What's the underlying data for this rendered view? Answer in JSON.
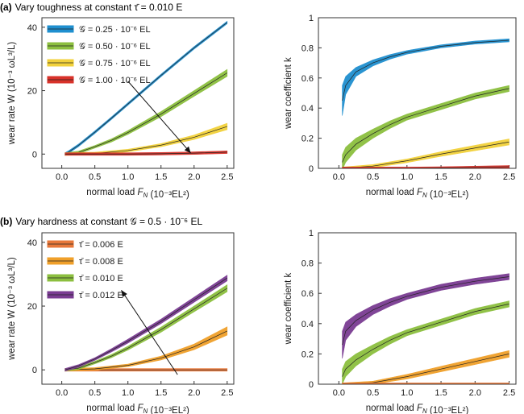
{
  "panels": [
    {
      "tag": "(a)",
      "title": "Vary toughness at constant τ̄ = 0.010 E"
    },
    {
      "tag": "(b)",
      "title": "Vary hardness at constant 𝒢 = 0.5 · 10⁻⁶ EL"
    }
  ],
  "colors": {
    "blue": "#1f8fcf",
    "green": "#8cbf3f",
    "yellow": "#f2d13a",
    "red": "#d8322a",
    "orange": "#e8783a",
    "amber": "#f0a02a",
    "purple": "#7a3c92",
    "centerline": "#222222",
    "frame": "#333333"
  },
  "chart_data": [
    {
      "id": "a-left",
      "type": "line",
      "xlabel": "normal load F_N (10⁻³EL²)",
      "ylabel": "wear rate W (10⁻³ ωL³/L)",
      "xlim": [
        -0.3,
        2.6
      ],
      "ylim": [
        -4.5,
        43
      ],
      "xticks": [
        "0.0",
        "0.5",
        "1.0",
        "1.5",
        "2.0",
        "2.5"
      ],
      "yticks": [
        "0",
        "20",
        "40"
      ],
      "legend": "top-left",
      "series": [
        {
          "name": "𝒢 = 0.25 · 10⁻⁶ EL",
          "color": "blue",
          "x": [
            0.05,
            0.1,
            0.25,
            0.5,
            0.75,
            1.0,
            1.5,
            2.0,
            2.5
          ],
          "y": [
            0,
            0.6,
            2.7,
            6.9,
            11.3,
            15.8,
            24.8,
            33.5,
            41.5
          ],
          "band": [
            0,
            0,
            0.1,
            0.15,
            0.2,
            0.2,
            0.25,
            0.3,
            0.3
          ]
        },
        {
          "name": "𝒢 = 0.50 · 10⁻⁶ EL",
          "color": "green",
          "x": [
            0.05,
            0.25,
            0.5,
            0.75,
            1.0,
            1.5,
            2.0,
            2.5
          ],
          "y": [
            0,
            0.5,
            2.3,
            4.3,
            6.8,
            12.6,
            19.1,
            25.6
          ],
          "band": [
            0,
            0.2,
            0.4,
            0.5,
            0.6,
            0.8,
            0.9,
            1.1
          ]
        },
        {
          "name": "𝒢 = 0.75 · 10⁻⁶ EL",
          "color": "yellow",
          "x": [
            0.05,
            0.5,
            1.0,
            1.5,
            2.0,
            2.5
          ],
          "y": [
            0,
            0.2,
            1.1,
            2.8,
            5.3,
            8.7
          ],
          "band": [
            0,
            0.1,
            0.3,
            0.5,
            0.7,
            1.0
          ]
        },
        {
          "name": "𝒢 = 1.00 · 10⁻⁶ EL",
          "color": "red",
          "x": [
            0.05,
            1.0,
            1.5,
            2.0,
            2.5
          ],
          "y": [
            0,
            0,
            0.1,
            0.3,
            0.6
          ],
          "band": [
            0,
            0.05,
            0.1,
            0.2,
            0.3
          ]
        }
      ],
      "arrow": {
        "from": [
          1.0,
          23
        ],
        "to": [
          1.95,
          0.3
        ]
      }
    },
    {
      "id": "a-right",
      "type": "line",
      "xlabel": "normal load F_N (10⁻³EL²)",
      "ylabel": "wear coefficient k",
      "xlim": [
        -0.3,
        2.6
      ],
      "ylim": [
        0,
        1
      ],
      "xticks": [
        "0.0",
        "0.5",
        "1.0",
        "1.5",
        "2.0",
        "2.5"
      ],
      "yticks": [
        "0",
        "0.2",
        "0.4",
        "0.6",
        "0.8",
        "1"
      ],
      "series": [
        {
          "color": "blue",
          "x": [
            0.05,
            0.1,
            0.25,
            0.5,
            0.75,
            1.0,
            1.5,
            2.0,
            2.5
          ],
          "y": [
            0.45,
            0.55,
            0.64,
            0.7,
            0.74,
            0.77,
            0.81,
            0.835,
            0.85
          ],
          "band": [
            0.1,
            0.06,
            0.03,
            0.02,
            0.015,
            0.012,
            0.01,
            0.01,
            0.01
          ]
        },
        {
          "color": "green",
          "x": [
            0.05,
            0.1,
            0.25,
            0.5,
            0.75,
            1.0,
            1.5,
            2.0,
            2.5
          ],
          "y": [
            0.04,
            0.09,
            0.16,
            0.23,
            0.29,
            0.34,
            0.41,
            0.48,
            0.53
          ],
          "band": [
            0.05,
            0.05,
            0.04,
            0.03,
            0.025,
            0.02,
            0.02,
            0.02,
            0.02
          ]
        },
        {
          "color": "yellow",
          "x": [
            0.05,
            0.5,
            1.0,
            1.5,
            2.0,
            2.5
          ],
          "y": [
            0,
            0.015,
            0.05,
            0.095,
            0.135,
            0.175
          ],
          "band": [
            0,
            0.01,
            0.012,
            0.015,
            0.018,
            0.02
          ]
        },
        {
          "color": "red",
          "x": [
            0.05,
            1.0,
            1.5,
            2.0,
            2.5
          ],
          "y": [
            0,
            0,
            0.002,
            0.006,
            0.01
          ],
          "band": [
            0,
            0.002,
            0.004,
            0.005,
            0.006
          ]
        }
      ]
    },
    {
      "id": "b-left",
      "type": "line",
      "xlabel": "normal load F_N (10⁻³EL²)",
      "ylabel": "wear rate W (10⁻³ ωL³/L)",
      "xlim": [
        -0.3,
        2.6
      ],
      "ylim": [
        -4.5,
        43
      ],
      "xticks": [
        "0.0",
        "0.5",
        "1.0",
        "1.5",
        "2.0",
        "2.5"
      ],
      "yticks": [
        "0",
        "20",
        "40"
      ],
      "legend": "top-left",
      "series": [
        {
          "name": "τ̄ = 0.006 E",
          "color": "orange",
          "x": [
            0.05,
            1.0,
            2.0,
            2.5
          ],
          "y": [
            0,
            0,
            0,
            0
          ],
          "band": [
            0,
            0.05,
            0.05,
            0.05
          ]
        },
        {
          "name": "τ̄ = 0.008 E",
          "color": "amber",
          "x": [
            0.05,
            0.5,
            1.0,
            1.5,
            2.0,
            2.5
          ],
          "y": [
            0,
            0.3,
            1.4,
            3.7,
            7.2,
            12.2
          ],
          "band": [
            0,
            0.2,
            0.4,
            0.6,
            0.9,
            1.3
          ]
        },
        {
          "name": "τ̄ = 0.010 E",
          "color": "green",
          "x": [
            0.05,
            0.25,
            0.5,
            0.75,
            1.0,
            1.5,
            2.0,
            2.5
          ],
          "y": [
            0,
            0.5,
            2.3,
            4.3,
            6.8,
            12.6,
            19.1,
            25.6
          ],
          "band": [
            0,
            0.2,
            0.4,
            0.5,
            0.6,
            0.8,
            0.9,
            1.1
          ]
        },
        {
          "name": "τ̄ = 0.012 E",
          "color": "purple",
          "x": [
            0.05,
            0.25,
            0.5,
            0.75,
            1.0,
            1.5,
            2.0,
            2.5
          ],
          "y": [
            0,
            1.2,
            3.4,
            6.1,
            9.0,
            15.2,
            22.0,
            28.8
          ],
          "band": [
            0,
            0.3,
            0.4,
            0.5,
            0.6,
            0.7,
            0.8,
            0.9
          ]
        }
      ],
      "arrow": {
        "from": [
          1.75,
          -1.5
        ],
        "to": [
          0.9,
          25
        ]
      }
    },
    {
      "id": "b-right",
      "type": "line",
      "xlabel": "normal load F_N (10⁻³EL²)",
      "ylabel": "wear coefficient k",
      "xlim": [
        -0.3,
        2.6
      ],
      "ylim": [
        0,
        1
      ],
      "xticks": [
        "0.0",
        "0.5",
        "1.0",
        "1.5",
        "2.0",
        "2.5"
      ],
      "yticks": [
        "0",
        "0.2",
        "0.4",
        "0.6",
        "0.8",
        "1"
      ],
      "series": [
        {
          "color": "purple",
          "x": [
            0.05,
            0.1,
            0.25,
            0.5,
            0.75,
            1.0,
            1.5,
            2.0,
            2.5
          ],
          "y": [
            0.26,
            0.35,
            0.42,
            0.49,
            0.54,
            0.58,
            0.64,
            0.68,
            0.71
          ],
          "band": [
            0.09,
            0.06,
            0.04,
            0.03,
            0.025,
            0.02,
            0.02,
            0.02,
            0.02
          ]
        },
        {
          "color": "green",
          "x": [
            0.05,
            0.1,
            0.25,
            0.5,
            0.75,
            1.0,
            1.5,
            2.0,
            2.5
          ],
          "y": [
            0.05,
            0.1,
            0.16,
            0.23,
            0.29,
            0.34,
            0.41,
            0.48,
            0.53
          ],
          "band": [
            0.05,
            0.05,
            0.04,
            0.03,
            0.025,
            0.02,
            0.02,
            0.02,
            0.02
          ]
        },
        {
          "color": "amber",
          "x": [
            0.05,
            0.5,
            1.0,
            1.5,
            2.0,
            2.5
          ],
          "y": [
            0,
            0.01,
            0.05,
            0.1,
            0.15,
            0.2
          ],
          "band": [
            0,
            0.01,
            0.015,
            0.018,
            0.02,
            0.022
          ]
        },
        {
          "color": "orange",
          "x": [
            0.05,
            2.5
          ],
          "y": [
            0,
            0
          ],
          "band": [
            0,
            0.002
          ]
        }
      ]
    }
  ]
}
